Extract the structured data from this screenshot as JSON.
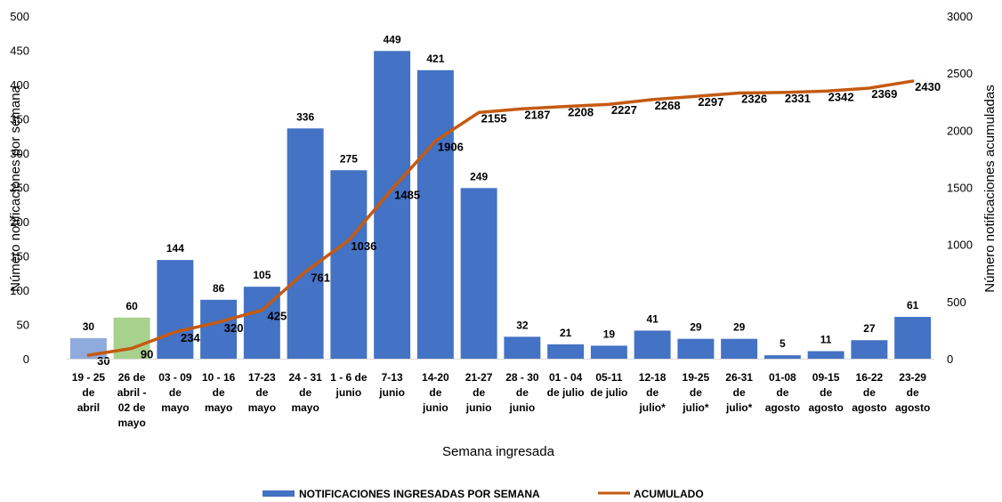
{
  "chart_data": {
    "type": "bar",
    "xlabel": "Semana ingresada",
    "ylabel": "Número notificaciones por semana",
    "y2label": "Número notificaciones acumuladas",
    "ylim": [
      0,
      500
    ],
    "y2lim": [
      0,
      3000
    ],
    "yticks": [
      "0",
      "50",
      "100",
      "150",
      "200",
      "250",
      "300",
      "350",
      "400",
      "450",
      "500"
    ],
    "y2ticks": [
      "0",
      "500",
      "1000",
      "1500",
      "2000",
      "2500",
      "3000"
    ],
    "grid": false,
    "legend_position": "bottom",
    "categories": [
      [
        "19 - 25",
        "de",
        "abril"
      ],
      [
        "26 de",
        "abril -",
        "02 de",
        "mayo"
      ],
      [
        "03 - 09",
        "de",
        "mayo"
      ],
      [
        "10 - 16",
        "de",
        "mayo"
      ],
      [
        "17-23",
        "de",
        "mayo"
      ],
      [
        "24 - 31",
        "de",
        "mayo"
      ],
      [
        "1 - 6 de",
        "junio"
      ],
      [
        "7-13",
        "junio"
      ],
      [
        "14-20",
        "de",
        "junio"
      ],
      [
        "21-27",
        "de",
        "junio"
      ],
      [
        "28 - 30",
        "de",
        "junio"
      ],
      [
        "01 - 04",
        "de julio"
      ],
      [
        "05-11",
        "de julio"
      ],
      [
        "12-18",
        "de",
        "julio*"
      ],
      [
        "19-25",
        "de",
        "julio*"
      ],
      [
        "26-31",
        "de",
        "julio*"
      ],
      [
        "01-08",
        "de",
        "agosto"
      ],
      [
        "09-15",
        "de",
        "agosto"
      ],
      [
        "16-22",
        "de",
        "agosto"
      ],
      [
        "23-29",
        "de",
        "agosto"
      ]
    ],
    "series": [
      {
        "name": "NOTIFICACIONES INGRESADAS POR SEMANA",
        "type": "bar",
        "axis": "left",
        "color": "#4472C4",
        "values": [
          30,
          60,
          144,
          86,
          105,
          336,
          275,
          449,
          421,
          249,
          32,
          21,
          19,
          41,
          29,
          29,
          5,
          11,
          27,
          61
        ],
        "bar_colors": {
          "0": "#8FAADC",
          "1": "#A9D18E"
        }
      },
      {
        "name": "ACUMULADO",
        "type": "line",
        "axis": "right",
        "color": "#C55A11",
        "values": [
          30,
          90,
          234,
          320,
          425,
          761,
          1036,
          1485,
          1906,
          2155,
          2187,
          2208,
          2227,
          2268,
          2297,
          2326,
          2331,
          2342,
          2369,
          2430
        ]
      }
    ]
  }
}
